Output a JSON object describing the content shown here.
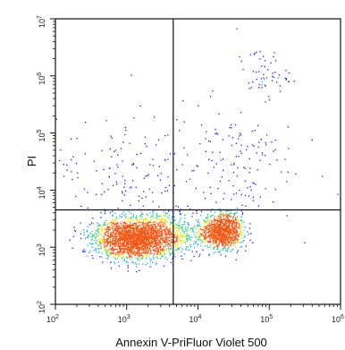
{
  "chart_data": {
    "type": "scatter",
    "subtype": "flow-cytometry-density-dot-plot",
    "xlabel": "Annexin V-PriFluor Violet 500",
    "ylabel": "PI",
    "x_scale": "log",
    "y_scale": "log",
    "xlim": [
      100,
      1000000
    ],
    "ylim": [
      100,
      10000000
    ],
    "x_ticks": [
      {
        "value": 100,
        "base": "10",
        "exp": "2"
      },
      {
        "value": 1000,
        "base": "10",
        "exp": "3"
      },
      {
        "value": 10000,
        "base": "10",
        "exp": "4"
      },
      {
        "value": 100000,
        "base": "10",
        "exp": "5"
      },
      {
        "value": 1000000,
        "base": "10",
        "exp": "6"
      }
    ],
    "y_ticks": [
      {
        "value": 100,
        "base": "10",
        "exp": "2"
      },
      {
        "value": 1000,
        "base": "10",
        "exp": "3"
      },
      {
        "value": 10000,
        "base": "10",
        "exp": "4"
      },
      {
        "value": 100000,
        "base": "10",
        "exp": "5"
      },
      {
        "value": 1000000,
        "base": "10",
        "exp": "6"
      },
      {
        "value": 10000000,
        "base": "10",
        "exp": "7"
      }
    ],
    "quadrant_gates": {
      "x": 4500,
      "y": 4500
    },
    "populations": [
      {
        "center": [
          1300,
          1400
        ],
        "count": 2200,
        "spread": [
          0.28,
          0.17
        ]
      },
      {
        "center": [
          22000,
          1900
        ],
        "count": 1100,
        "spread": [
          0.14,
          0.15
        ]
      },
      {
        "center": [
          3500,
          1800
        ],
        "count": 500,
        "spread": [
          0.35,
          0.22
        ]
      },
      {
        "center": [
          80000,
          1100000
        ],
        "count": 60,
        "spread": [
          0.18,
          0.22
        ]
      },
      {
        "center": [
          30000,
          30000
        ],
        "count": 150,
        "spread": [
          0.45,
          0.55
        ]
      },
      {
        "center": [
          800,
          25000
        ],
        "count": 120,
        "spread": [
          0.45,
          0.45
        ]
      }
    ],
    "colors": {
      "sparse": "#1c1cd6",
      "low": "#17a6e0",
      "mid": "#2fd07a",
      "high": "#f0e21a",
      "peak": "#f05a18"
    },
    "grid": false,
    "legend": "none"
  }
}
